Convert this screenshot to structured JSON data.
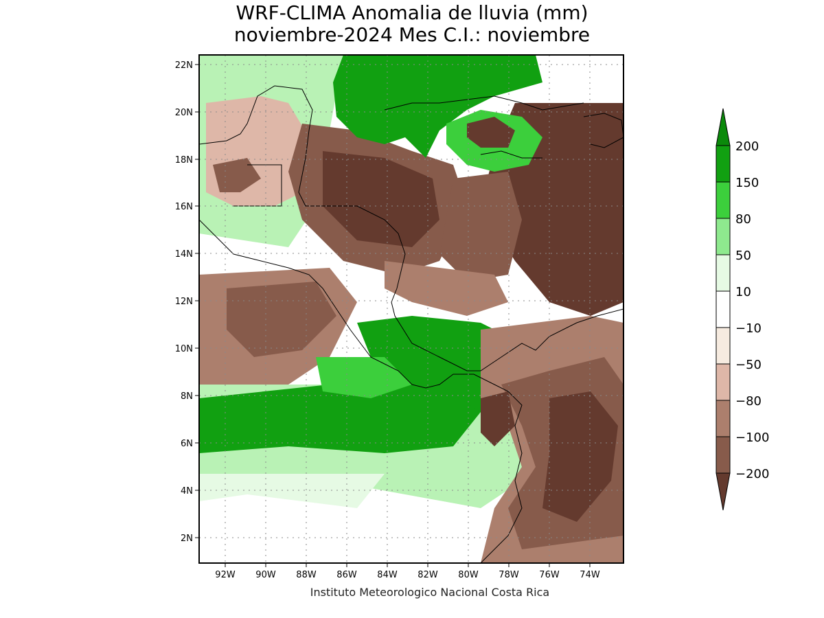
{
  "title_line1": "WRF-CLIMA Anomalia de lluvia (mm)",
  "title_line2": "noviembre-2024 Mes C.I.: noviembre",
  "credit": "Instituto Meteorologico Nacional Costa Rica",
  "axes": {
    "lon_ticks": [
      "92W",
      "90W",
      "88W",
      "86W",
      "84W",
      "82W",
      "80W",
      "78W",
      "76W",
      "74W"
    ],
    "lat_ticks": [
      "22N",
      "20N",
      "18N",
      "16N",
      "14N",
      "12N",
      "10N",
      "8N",
      "6N",
      "4N",
      "2N"
    ]
  },
  "colorbar": {
    "labels": [
      "200",
      "150",
      "80",
      "50",
      "10",
      "−10",
      "−50",
      "−80",
      "−100",
      "−200"
    ],
    "colors": {
      "gt200": "#0b8a0b",
      "150_200": "#11a011",
      "80_150": "#3ccf3c",
      "50_80": "#8ee98e",
      "10_50": "#b9f2b5",
      "0_10": "#e6fae4",
      "neutral": "#ffffff",
      "m10_m50": "#f6ebe0",
      "m50_m80": "#deb7a8",
      "m80_m100": "#ac7f6d",
      "m100_m200": "#875b4b",
      "lt_m200": "#643a2e"
    }
  },
  "icons": {
    "up_arrow": "triangle-up",
    "down_arrow": "triangle-down"
  }
}
